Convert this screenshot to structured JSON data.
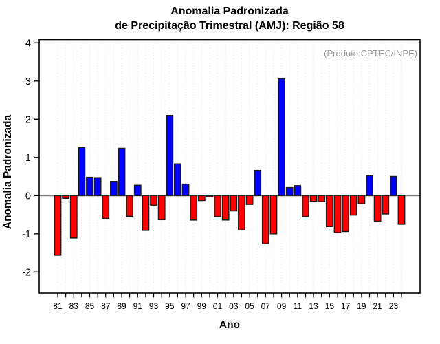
{
  "page": {
    "background": "#ffffff"
  },
  "title": {
    "line1": "Anomalia Padronizada",
    "line2": "de Precipitação Trimestral (AMJ): Região 58"
  },
  "annotation": {
    "text": "(Produto:CPTEC/INPE)",
    "color": "#9b9b9b"
  },
  "axes": {
    "x_label": "Ano",
    "y_label": "Anomalia Padronizada"
  },
  "chart_data": {
    "type": "bar",
    "title": "Anomalia Padronizada de Precipitação Trimestral (AMJ): Região 58",
    "xlabel": "Ano",
    "ylabel": "Anomalia Padronizada",
    "x": [
      1981,
      1982,
      1983,
      1984,
      1985,
      1986,
      1987,
      1988,
      1989,
      1990,
      1991,
      1992,
      1993,
      1994,
      1995,
      1996,
      1997,
      1998,
      1999,
      2000,
      2001,
      2002,
      2003,
      2004,
      2005,
      2006,
      2007,
      2008,
      2009,
      2010,
      2011,
      2012,
      2013,
      2014,
      2015,
      2016,
      2017,
      2018,
      2019,
      2020,
      2021,
      2022,
      2023,
      2024
    ],
    "values": [
      -1.56,
      -0.07,
      -1.11,
      1.26,
      0.48,
      0.47,
      -0.6,
      0.37,
      1.24,
      -0.54,
      0.27,
      -0.91,
      -0.25,
      -0.63,
      2.1,
      0.83,
      0.3,
      -0.64,
      -0.13,
      -0.03,
      -0.55,
      -0.64,
      -0.4,
      -0.9,
      -0.23,
      0.66,
      -1.26,
      -1.0,
      3.06,
      0.21,
      0.26,
      -0.55,
      -0.15,
      -0.16,
      -0.81,
      -0.97,
      -0.94,
      -0.51,
      -0.21,
      0.52,
      -0.67,
      -0.48,
      0.5,
      -0.75
    ],
    "ylim": [
      -2.55,
      4.05
    ],
    "yticks": [
      -2,
      -1,
      0,
      1,
      2,
      3,
      4
    ],
    "xtick_labels": [
      "81",
      "83",
      "85",
      "87",
      "89",
      "91",
      "93",
      "95",
      "97",
      "99",
      "01",
      "03",
      "05",
      "07",
      "09",
      "11",
      "13",
      "15",
      "17",
      "19",
      "21",
      "23"
    ],
    "grid": "vertical-dotted",
    "legend": "none",
    "colors": {
      "positive": "#0000ff",
      "negative": "#ff0000",
      "bar_outline": "#1c1c1c",
      "grid": "#dadada",
      "zero_line": "#808080",
      "axis": "#000000"
    }
  }
}
